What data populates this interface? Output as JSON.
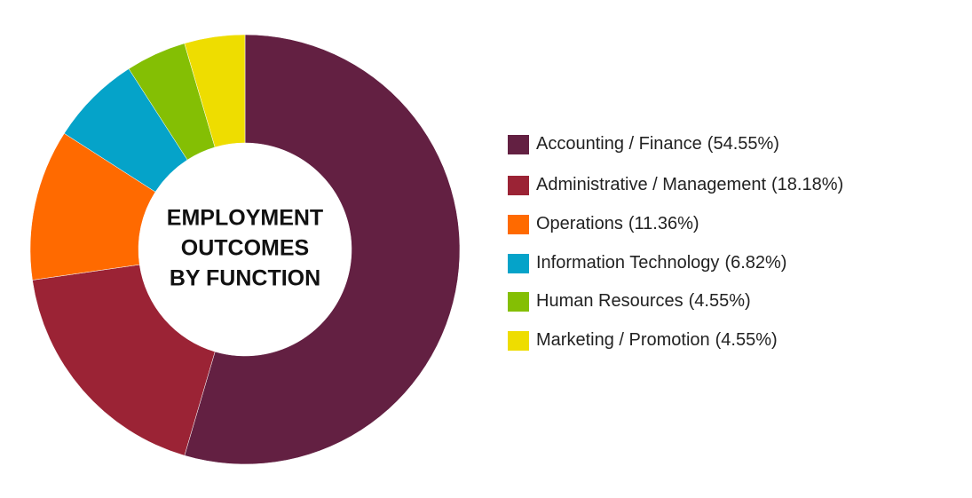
{
  "chart_data": {
    "type": "donut",
    "title": [
      "EMPLOYMENT",
      "OUTCOMES",
      "BY FUNCTION"
    ],
    "categories": [
      "Accounting / Finance",
      "Administrative / Management",
      "Operations",
      "Information Technology",
      "Human Resources",
      "Marketing / Promotion"
    ],
    "values": [
      54.55,
      18.18,
      11.36,
      6.82,
      4.55,
      4.55
    ],
    "value_labels": [
      "(54.55%)",
      "(18.18%)",
      "(11.36%)",
      "(6.82%)",
      "(4.55%)",
      "(4.55%)"
    ],
    "colors": [
      "#632042",
      "#9b2335",
      "#ff6a00",
      "#05a3c9",
      "#84bf04",
      "#eedd00"
    ],
    "legend": "right"
  }
}
